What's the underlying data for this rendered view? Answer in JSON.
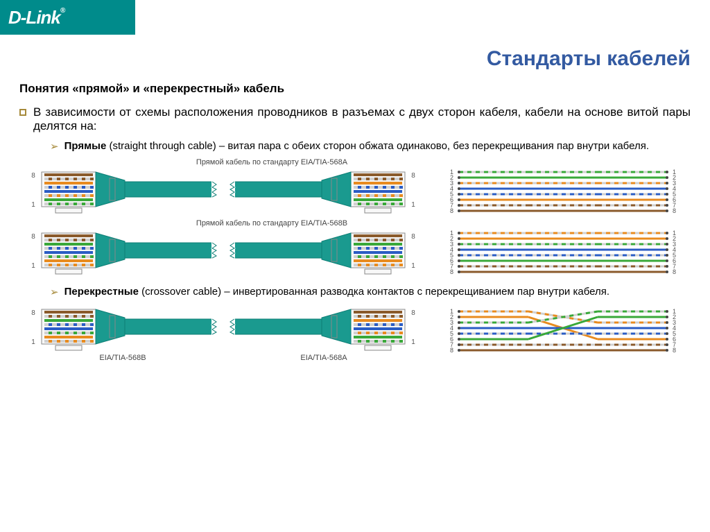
{
  "logo": "D-Link",
  "logo_reg": "®",
  "title": "Стандарты кабелей",
  "subtitle": "Понятия «прямой» и «перекрестный» кабель",
  "intro": "В зависимости от схемы расположения проводников в разъемах с двух сторон кабеля, кабели на основе витой пары делятся на:",
  "bullet_straight_bold": "Прямые",
  "bullet_straight_rest": " (straight through cable) – витая пара с обеих сторон обжата одинаково, без перекрещивания пар внутри кабеля.",
  "bullet_cross_bold": "Перекрестные",
  "bullet_cross_rest": " (crossover cable) – инвертированная разводка контактов с перекрещиванием пар внутри кабеля.",
  "label_568a": "Прямой кабель по стандарту EIA/TIA-568A",
  "label_568b": "Прямой кабель по стандарту EIA/TIA-568B",
  "label_conn_b": "EIA/TIA-568B",
  "label_conn_a": "EIA/TIA-568A",
  "colors": {
    "accent_title": "#335aa1",
    "bullet_border": "#a68a3a",
    "cable_jacket": "#1a9a8f",
    "connector_body": "#f8f8f8",
    "connector_stroke": "#888888",
    "pin_num": "#555555"
  },
  "t568a_wires": [
    "#d0d0d0",
    "#39a839",
    "#d0d0d0",
    "#2a5cc4",
    "#d0d0d0",
    "#e88b1f",
    "#d0d0d0",
    "#8a5a2b"
  ],
  "t568a_stripes": [
    "#39a839",
    null,
    "#e88b1f",
    null,
    "#2a5cc4",
    null,
    "#8a5a2b",
    null
  ],
  "t568b_wires": [
    "#d0d0d0",
    "#e88b1f",
    "#d0d0d0",
    "#2a5cc4",
    "#d0d0d0",
    "#39a839",
    "#d0d0d0",
    "#8a5a2b"
  ],
  "t568b_stripes": [
    "#e88b1f",
    null,
    "#39a839",
    null,
    "#2a5cc4",
    null,
    "#8a5a2b",
    null
  ],
  "crossover_map": [
    [
      1,
      3
    ],
    [
      2,
      6
    ],
    [
      3,
      1
    ],
    [
      4,
      4
    ],
    [
      5,
      5
    ],
    [
      6,
      2
    ],
    [
      7,
      7
    ],
    [
      8,
      8
    ]
  ],
  "pin_labels_left": [
    "8",
    "1"
  ],
  "pin_labels_right": [
    "8",
    "1"
  ],
  "map_labels": [
    1,
    2,
    3,
    4,
    5,
    6,
    7,
    8
  ]
}
